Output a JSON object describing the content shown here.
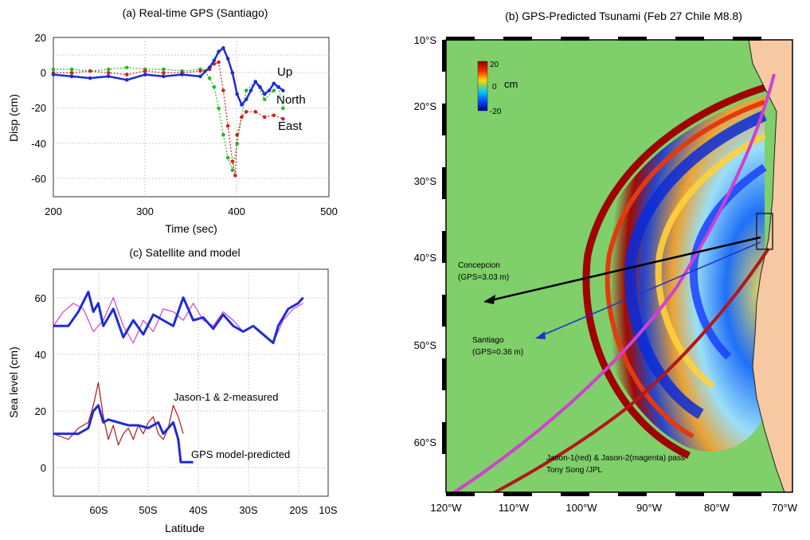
{
  "panel_a": {
    "title": "(a) Real-time GPS (Santiago)",
    "xlabel": "Time (sec)",
    "ylabel": "Disp (cm)",
    "x_ticks": [
      "200",
      "300",
      "400",
      "500"
    ],
    "y_ticks": [
      "20",
      "0",
      "-20",
      "-40",
      "-60"
    ],
    "labels": {
      "up": "Up",
      "north": "North",
      "east": "East"
    }
  },
  "panel_b": {
    "title": "(b) GPS-Predicted Tsunami (Feb 27 Chile M8.8)",
    "lat_ticks": [
      "10°S",
      "20°S",
      "30°S",
      "40°S",
      "50°S",
      "60°S"
    ],
    "lon_ticks": [
      "120°W",
      "110°W",
      "100°W",
      "90°W",
      "80°W",
      "70°W"
    ],
    "colorbar": {
      "max": "20",
      "mid": "0",
      "min": "-20",
      "unit": "cm"
    },
    "annotations": {
      "concepcion_name": "Concepcion",
      "concepcion_gps": "(GPS=3.03 m)",
      "santiago_name": "Santiago",
      "santiago_gps": "(GPS=0.36 m)",
      "pass_note": "Jason-1(red) & Jason-2(magenta) pass",
      "credit": "Tony Song /JPL"
    }
  },
  "panel_c": {
    "title": "(c) Satellite and model",
    "xlabel": "Latitude",
    "ylabel": "Sea level (cm)",
    "x_ticks": [
      "60S",
      "50S",
      "40S",
      "30S",
      "20S",
      "10S"
    ],
    "y_ticks": [
      "60",
      "40",
      "20",
      "0"
    ],
    "labels": {
      "measured": "Jason-1 & 2-measured",
      "predicted": "GPS model-predicted"
    }
  },
  "colors": {
    "up": "#1f2bd6",
    "north": "#22bb22",
    "east": "#d42020",
    "jason2": "#d040d0",
    "jason1": "#b01818",
    "ocean": "#7fcf6a",
    "land": "#f6c9a3"
  },
  "chart_data": [
    {
      "type": "scatter",
      "title": "(a) Real-time GPS (Santiago)",
      "xlabel": "Time (sec)",
      "ylabel": "Disp (cm)",
      "xlim": [
        200,
        500
      ],
      "ylim": [
        -70,
        20
      ],
      "series": [
        {
          "name": "Up",
          "x": [
            200,
            220,
            240,
            260,
            280,
            300,
            320,
            340,
            360,
            370,
            375,
            380,
            385,
            390,
            395,
            400,
            405,
            410,
            415,
            420,
            425,
            430,
            435,
            440,
            445,
            450
          ],
          "y": [
            -1,
            -2,
            -3,
            -2,
            -4,
            -1,
            -2,
            -1,
            -2,
            3,
            7,
            12,
            14,
            8,
            0,
            -12,
            -18,
            -15,
            -10,
            -5,
            -8,
            -12,
            -10,
            -6,
            -8,
            -10
          ]
        },
        {
          "name": "North",
          "x": [
            200,
            220,
            240,
            260,
            280,
            300,
            320,
            340,
            360,
            365,
            370,
            375,
            380,
            385,
            390,
            395,
            400,
            405,
            410,
            420,
            430,
            440,
            445,
            450
          ],
          "y": [
            2,
            2,
            1,
            2,
            3,
            2,
            2,
            1,
            2,
            1,
            -3,
            -8,
            -20,
            -35,
            -48,
            -55,
            -40,
            -25,
            -10,
            -5,
            -15,
            -10,
            -8,
            -20
          ]
        },
        {
          "name": "East",
          "x": [
            200,
            220,
            240,
            260,
            280,
            300,
            320,
            340,
            360,
            370,
            375,
            380,
            385,
            390,
            395,
            398,
            400,
            405,
            410,
            420,
            430,
            440,
            450
          ],
          "y": [
            0,
            0,
            1,
            0,
            -1,
            1,
            0,
            0,
            1,
            2,
            5,
            6,
            -10,
            -30,
            -50,
            -58,
            -35,
            -25,
            -22,
            -22,
            -25,
            -24,
            -26
          ]
        }
      ]
    },
    {
      "type": "line",
      "title": "(c) Satellite and model",
      "xlabel": "Latitude",
      "ylabel": "Sea level (cm)",
      "xlim": [
        -65,
        -10
      ],
      "ylim": [
        -10,
        70
      ],
      "series": [
        {
          "name": "Jason-1 & 2-measured",
          "x": [
            -65,
            -63,
            -61,
            -59,
            -57,
            -55,
            -53,
            -51,
            -49,
            -47,
            -45,
            -43,
            -41,
            -39,
            -37,
            -35,
            -33,
            -31,
            -29,
            -27,
            -25,
            -23,
            -21,
            -19,
            -17,
            -15
          ],
          "y": [
            50,
            55,
            58,
            56,
            48,
            52,
            60,
            50,
            44,
            52,
            48,
            56,
            55,
            52,
            58,
            52,
            50,
            55,
            52,
            48,
            50,
            47,
            44,
            52,
            56,
            58
          ]
        },
        {
          "name": "GPS model-predicted (upper)",
          "x": [
            -65,
            -62,
            -60,
            -58,
            -57,
            -56,
            -55,
            -53,
            -51,
            -49,
            -47,
            -45,
            -43,
            -41,
            -39,
            -37,
            -35,
            -33,
            -31,
            -29,
            -27,
            -25,
            -23,
            -21,
            -20,
            -18,
            -16,
            -15
          ],
          "y": [
            50,
            50,
            55,
            62,
            55,
            58,
            50,
            56,
            46,
            52,
            47,
            54,
            52,
            50,
            60,
            52,
            53,
            49,
            54,
            50,
            48,
            50,
            47,
            44,
            50,
            56,
            58,
            60
          ]
        },
        {
          "name": "Jason measured (lower)",
          "x": [
            -65,
            -62,
            -60,
            -58,
            -57,
            -56,
            -55,
            -54,
            -53,
            -52,
            -51,
            -50,
            -49,
            -48,
            -47,
            -46,
            -45,
            -44,
            -43,
            -42,
            -41,
            -40,
            -39
          ],
          "y": [
            12,
            10,
            14,
            16,
            22,
            30,
            18,
            10,
            15,
            8,
            12,
            14,
            10,
            15,
            12,
            16,
            18,
            12,
            10,
            14,
            22,
            18,
            12
          ]
        },
        {
          "name": "GPS model-predicted",
          "x": [
            -65,
            -60,
            -58,
            -57,
            -56,
            -55,
            -54,
            -52,
            -50,
            -48,
            -46,
            -44,
            -43,
            -42,
            -41,
            -40.5,
            -40,
            -39.5,
            -38.5,
            -37
          ],
          "y": [
            12,
            12,
            14,
            20,
            22,
            16,
            17,
            16,
            15,
            15,
            14,
            16,
            12,
            14,
            16,
            13,
            10,
            2,
            2,
            2
          ]
        }
      ]
    }
  ]
}
